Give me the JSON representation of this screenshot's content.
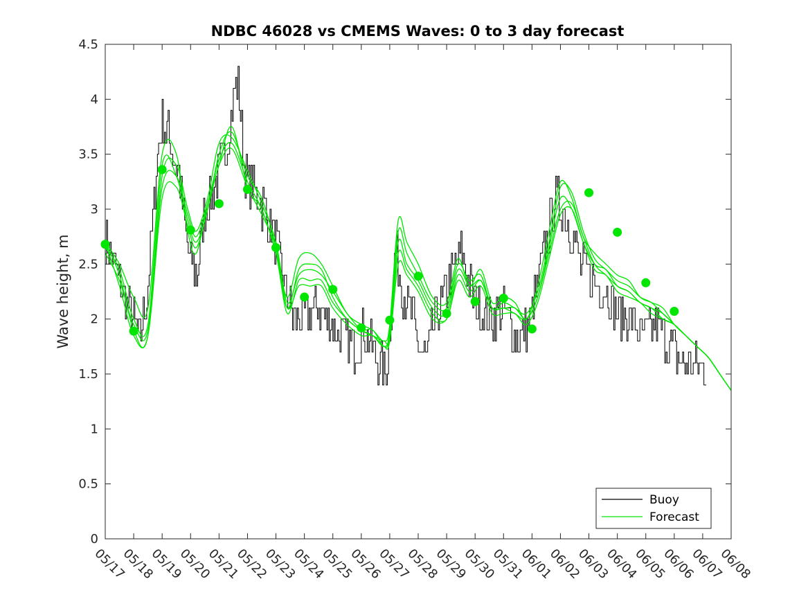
{
  "chart_data": {
    "type": "line",
    "title": "NDBC 46028 vs CMEMS Waves: 0 to 3 day forecast",
    "xlabel": "",
    "ylabel": "Wave height, m",
    "xlim": [
      "05/17",
      "06/08"
    ],
    "ylim": [
      0,
      4.5
    ],
    "yticks": [
      0,
      0.5,
      1,
      1.5,
      2,
      2.5,
      3,
      3.5,
      4,
      4.5
    ],
    "xtick_labels": [
      "05/17",
      "05/18",
      "05/19",
      "05/20",
      "05/21",
      "05/22",
      "05/23",
      "05/24",
      "05/25",
      "05/26",
      "05/27",
      "05/28",
      "05/29",
      "05/30",
      "05/31",
      "06/01",
      "06/02",
      "06/03",
      "06/04",
      "06/05",
      "06/06",
      "06/07",
      "06/08"
    ],
    "grid": false,
    "legend": {
      "location": "bottom-right",
      "entries": [
        "Buoy",
        "Forecast"
      ]
    },
    "colors": {
      "buoy": "#000000",
      "forecast": "#00e600"
    },
    "buoy_anchor_points": {
      "x_day": [
        0,
        0.1,
        0.3,
        0.5,
        0.7,
        1.0,
        1.2,
        1.5,
        1.8,
        2.0,
        2.3,
        2.6,
        2.9,
        3.2,
        3.5,
        3.8,
        4.2,
        4.5,
        4.65,
        4.9,
        5.2,
        5.6,
        6.0,
        6.3,
        6.6,
        6.9,
        7.2,
        7.5,
        7.8,
        8.2,
        8.5,
        8.8,
        9.1,
        9.4,
        9.7,
        9.85,
        10.0,
        10.2,
        10.4,
        10.7,
        11.0,
        11.3,
        11.6,
        11.9,
        12.2,
        12.5,
        12.8,
        13.1,
        13.4,
        13.7,
        14.0,
        14.3,
        14.6,
        14.9,
        15.2,
        15.5,
        15.8,
        16.1,
        16.4,
        16.7,
        17.0,
        17.3,
        17.6,
        17.9,
        18.2,
        18.5,
        18.8,
        19.1,
        19.4,
        19.7,
        20.0,
        20.3,
        20.6,
        20.9,
        21.1
      ],
      "values": [
        2.75,
        2.7,
        2.5,
        2.35,
        2.2,
        2.0,
        1.8,
        2.3,
        3.4,
        3.8,
        3.6,
        3.3,
        2.6,
        2.4,
        3.0,
        3.2,
        3.5,
        4.0,
        4.2,
        3.3,
        3.2,
        3.0,
        2.7,
        2.3,
        2.0,
        2.0,
        2.05,
        2.1,
        2.0,
        1.85,
        1.8,
        1.75,
        1.9,
        1.75,
        1.55,
        1.5,
        1.9,
        2.65,
        2.3,
        2.1,
        1.75,
        1.65,
        2.0,
        2.2,
        2.4,
        2.65,
        2.3,
        2.1,
        2.05,
        2.0,
        2.1,
        1.9,
        1.8,
        2.0,
        2.3,
        2.7,
        3.1,
        3.0,
        2.75,
        2.5,
        2.4,
        2.3,
        2.3,
        2.1,
        2.0,
        2.0,
        1.85,
        1.9,
        1.95,
        1.8,
        1.7,
        1.6,
        1.6,
        1.55,
        1.5
      ]
    },
    "forecast_series": [
      {
        "x_day": [
          0,
          0.5,
          1.0,
          1.5,
          2.0,
          2.5,
          2.9,
          3.2,
          3.6,
          4.0,
          4.45,
          5.0,
          5.5,
          6.0,
          6.4,
          6.8,
          7.2,
          7.6,
          8.0,
          8.5,
          9.0,
          9.4,
          9.8,
          10.0,
          10.3,
          10.6,
          11.0,
          11.5,
          12.0,
          12.4,
          12.8,
          13.2,
          13.6,
          14.0,
          14.4,
          14.8,
          15.2,
          15.6,
          16.0,
          16.4,
          16.8,
          17.2,
          17.6,
          18.0,
          18.4,
          18.8,
          19.2,
          19.6,
          20.0,
          20.4,
          20.8,
          21.2,
          21.6,
          22.0
        ],
        "values": [
          2.7,
          2.5,
          2.2,
          2.1,
          3.5,
          3.5,
          2.8,
          2.6,
          3.05,
          3.4,
          3.75,
          3.2,
          3.0,
          2.6,
          2.2,
          2.55,
          2.6,
          2.5,
          2.3,
          2.05,
          1.95,
          1.9,
          1.8,
          1.95,
          2.9,
          2.7,
          2.5,
          2.2,
          2.15,
          2.55,
          2.3,
          2.45,
          2.15,
          2.2,
          2.15,
          2.0,
          2.3,
          2.8,
          3.25,
          3.1,
          2.75,
          2.6,
          2.5,
          2.4,
          2.35,
          2.2,
          2.15,
          2.1,
          1.95,
          1.85,
          1.75,
          1.65,
          1.5,
          1.35
        ]
      },
      {
        "x_day": [
          0,
          0.5,
          1.0,
          1.5,
          2.0,
          2.5,
          2.9,
          3.2,
          3.6,
          4.0,
          4.45,
          5.0,
          5.5,
          6.0,
          6.4,
          6.8,
          7.2,
          7.6,
          8.0,
          8.5,
          9.0,
          9.4,
          9.8,
          10.0,
          10.3,
          10.6,
          11.0,
          11.5,
          12.0,
          12.4,
          12.8,
          13.2,
          13.6,
          14.0,
          14.4,
          14.8,
          15.2,
          15.6,
          16.0,
          16.4,
          16.8,
          17.2,
          17.6,
          18.0,
          18.4,
          18.8,
          19.2,
          19.6,
          20.0,
          20.4,
          20.8,
          21.2,
          21.6,
          22.0
        ],
        "values": [
          2.65,
          2.45,
          2.0,
          1.95,
          3.4,
          3.3,
          2.9,
          2.7,
          3.0,
          3.5,
          3.7,
          3.3,
          3.1,
          2.65,
          2.1,
          2.45,
          2.5,
          2.45,
          2.2,
          2.0,
          1.9,
          1.85,
          1.75,
          1.9,
          2.8,
          2.6,
          2.4,
          2.15,
          2.1,
          2.5,
          2.35,
          2.4,
          2.1,
          2.15,
          2.1,
          2.05,
          2.25,
          2.7,
          3.2,
          3.15,
          2.8,
          2.55,
          2.45,
          2.35,
          2.3,
          2.2,
          2.15,
          2.05,
          1.95,
          1.85,
          1.75,
          1.65,
          1.5,
          1.35
        ]
      },
      {
        "x_day": [
          0,
          0.5,
          1.0,
          1.5,
          2.0,
          2.5,
          2.9,
          3.2,
          3.6,
          4.0,
          4.45,
          5.0,
          5.5,
          6.0,
          6.4,
          6.8,
          7.2,
          7.6,
          8.0,
          8.5,
          9.0,
          9.4,
          9.8,
          10.0,
          10.3,
          10.6,
          11.0,
          11.5,
          12.0,
          12.4,
          12.8,
          13.2,
          13.6,
          14.0,
          14.4,
          14.8,
          15.2,
          15.6,
          16.0,
          16.4,
          16.8,
          17.2,
          17.6,
          18.0,
          18.4,
          18.8,
          19.2,
          19.6,
          20.0,
          20.4,
          20.8,
          21.2,
          21.6,
          22.0
        ],
        "values": [
          2.7,
          2.4,
          1.9,
          1.85,
          3.3,
          3.4,
          3.0,
          2.8,
          3.1,
          3.6,
          3.65,
          3.35,
          3.05,
          2.7,
          2.15,
          2.4,
          2.45,
          2.4,
          2.25,
          2.05,
          1.9,
          1.85,
          1.8,
          1.85,
          2.7,
          2.5,
          2.35,
          2.1,
          2.05,
          2.45,
          2.3,
          2.35,
          2.1,
          2.1,
          2.1,
          2.0,
          2.2,
          2.65,
          3.1,
          3.0,
          2.7,
          2.5,
          2.45,
          2.3,
          2.25,
          2.15,
          2.1,
          2.05,
          1.95,
          1.85,
          1.75,
          1.65,
          1.5,
          1.35
        ]
      },
      {
        "x_day": [
          0,
          0.5,
          1.0,
          1.5,
          2.0,
          2.5,
          2.9,
          3.2,
          3.6,
          4.0,
          4.45,
          5.0,
          5.5,
          6.0,
          6.4,
          6.8,
          7.2,
          7.6,
          8.0,
          8.5,
          9.0,
          9.4,
          9.8,
          10.0,
          10.3,
          10.6,
          11.0,
          11.5,
          12.0,
          12.4,
          12.8,
          13.2,
          13.6,
          14.0,
          14.4,
          14.8,
          15.2,
          15.6,
          16.0,
          16.4,
          16.8,
          17.2,
          17.6,
          18.0,
          18.4,
          18.8,
          19.2,
          19.6,
          20.0,
          20.4,
          20.8,
          21.2,
          21.6,
          22.0
        ],
        "values": [
          2.6,
          2.35,
          1.95,
          1.9,
          3.2,
          3.3,
          2.95,
          2.75,
          3.05,
          3.45,
          3.6,
          3.25,
          3.0,
          2.6,
          2.05,
          2.35,
          2.35,
          2.35,
          2.15,
          2.0,
          1.9,
          1.9,
          1.75,
          1.85,
          2.6,
          2.45,
          2.3,
          2.05,
          2.0,
          2.4,
          2.25,
          2.35,
          2.1,
          2.1,
          2.05,
          2.0,
          2.2,
          2.6,
          3.0,
          3.05,
          2.75,
          2.5,
          2.4,
          2.3,
          2.25,
          2.15,
          2.1,
          2.0,
          1.95,
          1.85,
          1.75,
          1.65,
          1.5,
          1.35
        ]
      },
      {
        "x_day": [
          0,
          0.5,
          1.0,
          1.5,
          2.0,
          2.5,
          2.9,
          3.2,
          3.6,
          4.0,
          4.45,
          5.0,
          5.5,
          6.0,
          6.4,
          6.8,
          7.2,
          7.6,
          8.0,
          8.5,
          9.0,
          9.4,
          9.8,
          10.0,
          10.3,
          10.6,
          11.0,
          11.5,
          12.0,
          12.4,
          12.8,
          13.2,
          13.6,
          14.0,
          14.4,
          14.8,
          15.2,
          15.6,
          16.0,
          16.4,
          16.8,
          17.2,
          17.6,
          18.0,
          18.4,
          18.8,
          19.2,
          19.6,
          20.0,
          20.4,
          20.8,
          21.2,
          21.6,
          22.0
        ],
        "values": [
          2.7,
          2.3,
          1.85,
          1.85,
          3.1,
          3.2,
          2.85,
          2.65,
          3.0,
          3.4,
          3.55,
          3.2,
          2.95,
          2.65,
          2.1,
          2.3,
          2.3,
          2.3,
          2.1,
          1.95,
          1.85,
          1.85,
          1.75,
          1.8,
          2.5,
          2.4,
          2.25,
          2.0,
          2.0,
          2.35,
          2.2,
          2.3,
          2.05,
          2.05,
          2.05,
          1.95,
          2.15,
          2.55,
          2.95,
          3.0,
          2.7,
          2.45,
          2.4,
          2.25,
          2.2,
          2.15,
          2.05,
          2.0,
          1.95,
          1.85,
          1.75,
          1.65,
          1.5,
          1.35
        ]
      }
    ],
    "forecast_markers": {
      "x_day": [
        0,
        1,
        2,
        3,
        4,
        5,
        6,
        7,
        8,
        9,
        10,
        11,
        12,
        13,
        14,
        15,
        16,
        17,
        18,
        19,
        20
      ],
      "values": [
        2.68,
        1.89,
        3.36,
        2.81,
        3.05,
        3.18,
        2.65,
        2.2,
        2.27,
        1.92,
        1.99,
        2.39,
        2.05,
        2.16,
        2.19,
        1.91,
        null,
        3.15,
        2.79,
        2.33,
        2.07
      ]
    }
  }
}
